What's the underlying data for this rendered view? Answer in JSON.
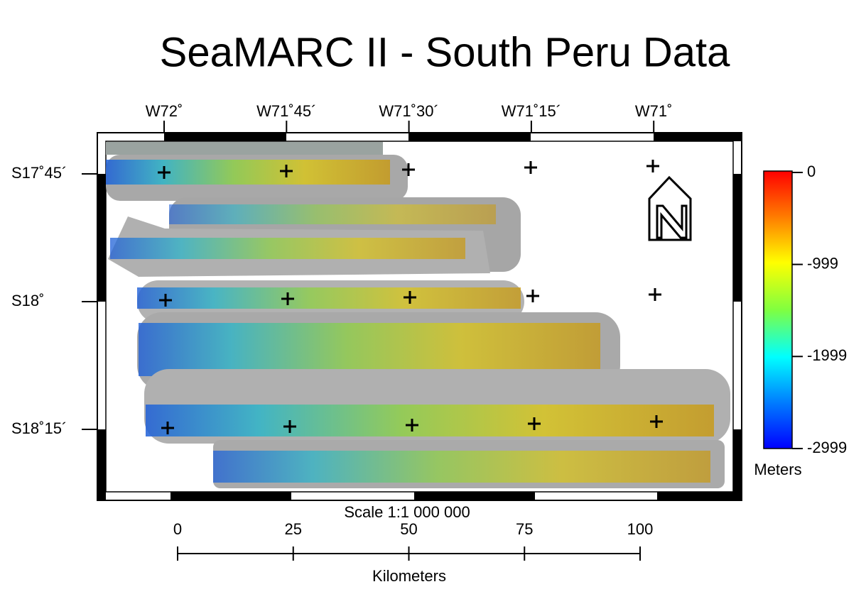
{
  "title": "SeaMARC II - South Peru Data",
  "longitude_labels": [
    "W72˚",
    "W71˚45´",
    "W71˚30´",
    "W71˚15´",
    "W71˚"
  ],
  "latitude_labels": [
    "S17˚45´",
    "S18˚",
    "S18˚15´"
  ],
  "colorbar": {
    "lim": [
      0,
      -2999
    ],
    "ticks": [
      0,
      -999,
      -1999,
      -2999
    ],
    "label": "Meters"
  },
  "scale": {
    "title": "Scale 1:1 000 000",
    "lim": [
      0,
      100
    ],
    "ticks": [
      0,
      25,
      50,
      75,
      100
    ],
    "label": "Kilometers"
  }
}
